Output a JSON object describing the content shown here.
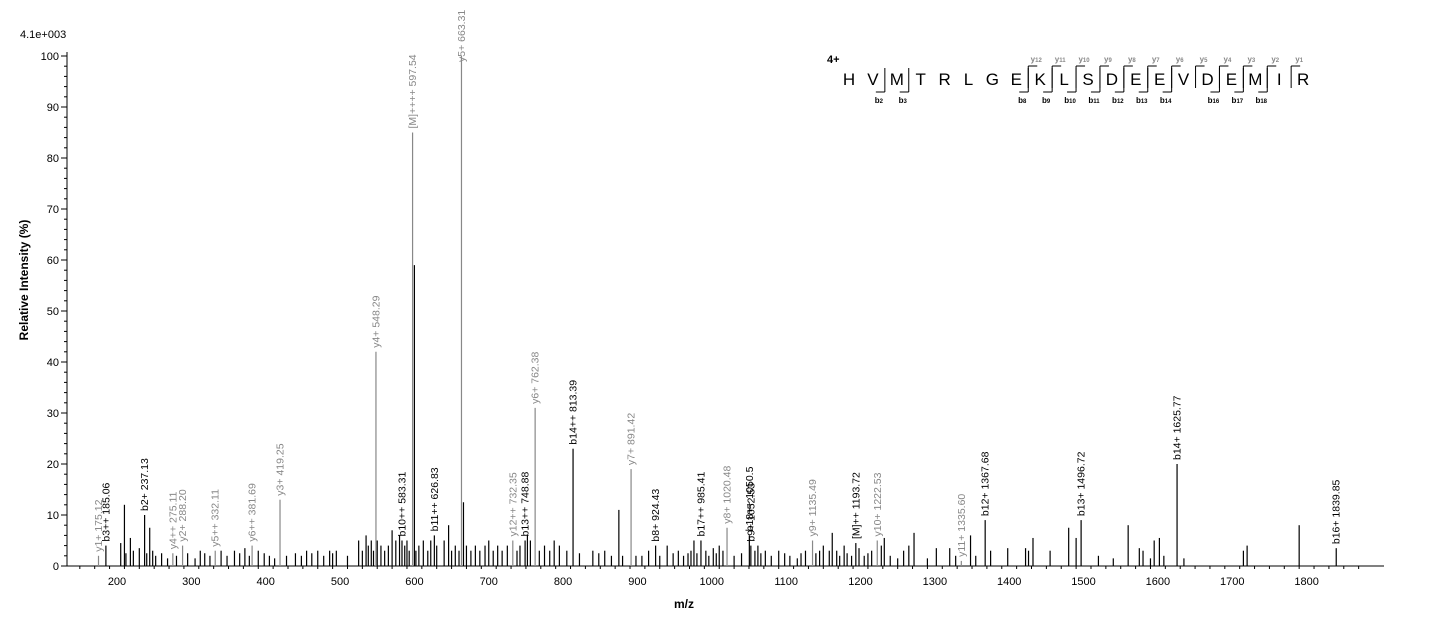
{
  "chart_data": {
    "type": "bar",
    "title": "",
    "xlabel": "m/z",
    "ylabel": "Relative   Intensity (%)",
    "scale_label": "4.1e+003",
    "xlim": [
      140,
      1880
    ],
    "ylim": [
      0,
      100
    ],
    "x_ticks": [
      200,
      300,
      400,
      500,
      600,
      700,
      800,
      900,
      1000,
      1100,
      1200,
      1300,
      1400,
      1500,
      1600,
      1700,
      1800
    ],
    "y_ticks": [
      0,
      10,
      20,
      30,
      40,
      50,
      60,
      70,
      80,
      90,
      100
    ],
    "grid": false,
    "colors": {
      "b_ion": "#000000",
      "y_ion": "#888888",
      "peak": "#000000"
    },
    "labeled_peaks": [
      {
        "mz": 175.12,
        "intensity": 2.0,
        "label": "y1+ 175.12",
        "series": "y"
      },
      {
        "mz": 185.06,
        "intensity": 4.0,
        "label": "b3++ 185.06",
        "series": "b"
      },
      {
        "mz": 237.13,
        "intensity": 10.0,
        "label": "b2+ 237.13",
        "series": "b"
      },
      {
        "mz": 275.11,
        "intensity": 2.5,
        "label": "y4++ 275.11",
        "series": "y"
      },
      {
        "mz": 288.2,
        "intensity": 4.0,
        "label": "y2+ 288.20",
        "series": "y"
      },
      {
        "mz": 332.11,
        "intensity": 3.0,
        "label": "y5++ 332.11",
        "series": "y"
      },
      {
        "mz": 381.69,
        "intensity": 4.0,
        "label": "y6++ 381.69",
        "series": "y"
      },
      {
        "mz": 419.25,
        "intensity": 13.0,
        "label": "y3+ 419.25",
        "series": "y"
      },
      {
        "mz": 548.29,
        "intensity": 42.0,
        "label": "y4+ 548.29",
        "series": "y"
      },
      {
        "mz": 583.31,
        "intensity": 5.0,
        "label": "b10++ 583.31",
        "series": "b"
      },
      {
        "mz": 597.54,
        "intensity": 85.0,
        "label": "[M]++++ 597.54",
        "series": "y"
      },
      {
        "mz": 626.83,
        "intensity": 6.0,
        "label": "b11++ 626.83",
        "series": "b"
      },
      {
        "mz": 663.31,
        "intensity": 100.0,
        "label": "y5+ 663.31",
        "series": "y"
      },
      {
        "mz": 732.35,
        "intensity": 5.0,
        "label": "y12++ 732.35",
        "series": "y"
      },
      {
        "mz": 748.88,
        "intensity": 5.0,
        "label": "b13++ 748.88",
        "series": "b"
      },
      {
        "mz": 762.38,
        "intensity": 31.0,
        "label": "y6+ 762.38",
        "series": "y"
      },
      {
        "mz": 813.39,
        "intensity": 23.0,
        "label": "b14++ 813.39",
        "series": "b"
      },
      {
        "mz": 891.42,
        "intensity": 19.0,
        "label": "y7+ 891.42",
        "series": "y"
      },
      {
        "mz": 924.43,
        "intensity": 4.0,
        "label": "b8+ 924.43",
        "series": "b"
      },
      {
        "mz": 985.41,
        "intensity": 5.0,
        "label": "b17++ 985.41",
        "series": "b"
      },
      {
        "mz": 1020.48,
        "intensity": 7.5,
        "label": "y8+ 1020.48",
        "series": "y"
      },
      {
        "mz": 1050.5,
        "intensity": 6.0,
        "label": "b18++ 1050.5",
        "series": "b"
      },
      {
        "mz": 1052.53,
        "intensity": 4.0,
        "label": "b9+ 1052.53",
        "series": "b"
      },
      {
        "mz": 1135.49,
        "intensity": 5.0,
        "label": "y9+ 1135.49",
        "series": "y"
      },
      {
        "mz": 1193.72,
        "intensity": 4.5,
        "label": "[M]++ 1193.72",
        "series": "b"
      },
      {
        "mz": 1222.53,
        "intensity": 5.0,
        "label": "y10+ 1222.53",
        "series": "y"
      },
      {
        "mz": 1335.6,
        "intensity": 1.0,
        "label": "y11+ 1335.60",
        "series": "y"
      },
      {
        "mz": 1367.68,
        "intensity": 9.0,
        "label": "b12+ 1367.68",
        "series": "b"
      },
      {
        "mz": 1496.72,
        "intensity": 9.0,
        "label": "b13+ 1496.72",
        "series": "b"
      },
      {
        "mz": 1625.77,
        "intensity": 20.0,
        "label": "b14+ 1625.77",
        "series": "b"
      },
      {
        "mz": 1839.85,
        "intensity": 3.5,
        "label": "b16+ 1839.85",
        "series": "b"
      }
    ],
    "background_peaks": [
      [
        205,
        4.5
      ],
      [
        210,
        12
      ],
      [
        212,
        2.5
      ],
      [
        218,
        5.5
      ],
      [
        222,
        3
      ],
      [
        230,
        3.5
      ],
      [
        240,
        2.5
      ],
      [
        244,
        7.5
      ],
      [
        248,
        3
      ],
      [
        252,
        2
      ],
      [
        260,
        2.5
      ],
      [
        268,
        1.5
      ],
      [
        280,
        2
      ],
      [
        295,
        2.5
      ],
      [
        305,
        1.5
      ],
      [
        312,
        3
      ],
      [
        318,
        2.5
      ],
      [
        325,
        2
      ],
      [
        340,
        3
      ],
      [
        348,
        2
      ],
      [
        358,
        3
      ],
      [
        365,
        2.5
      ],
      [
        372,
        3.5
      ],
      [
        378,
        2
      ],
      [
        390,
        3
      ],
      [
        398,
        2.5
      ],
      [
        405,
        2
      ],
      [
        412,
        1.5
      ],
      [
        428,
        2
      ],
      [
        440,
        2.5
      ],
      [
        448,
        2
      ],
      [
        455,
        3
      ],
      [
        462,
        2.5
      ],
      [
        470,
        3
      ],
      [
        478,
        2
      ],
      [
        486,
        3
      ],
      [
        490,
        2.5
      ],
      [
        495,
        3
      ],
      [
        510,
        2
      ],
      [
        525,
        5
      ],
      [
        530,
        3
      ],
      [
        535,
        6
      ],
      [
        538,
        4
      ],
      [
        542,
        5
      ],
      [
        545,
        3
      ],
      [
        550,
        5
      ],
      [
        555,
        4
      ],
      [
        560,
        3
      ],
      [
        565,
        4
      ],
      [
        570,
        7
      ],
      [
        575,
        5
      ],
      [
        580,
        6
      ],
      [
        587,
        4
      ],
      [
        590,
        5
      ],
      [
        593,
        3
      ],
      [
        600,
        59
      ],
      [
        602,
        3
      ],
      [
        606,
        4
      ],
      [
        612,
        5
      ],
      [
        618,
        3
      ],
      [
        622,
        5
      ],
      [
        630,
        4
      ],
      [
        640,
        5
      ],
      [
        646,
        8
      ],
      [
        650,
        3
      ],
      [
        655,
        4
      ],
      [
        660,
        3
      ],
      [
        666,
        12.5
      ],
      [
        670,
        4
      ],
      [
        676,
        3
      ],
      [
        682,
        4
      ],
      [
        688,
        3
      ],
      [
        695,
        4
      ],
      [
        700,
        5
      ],
      [
        706,
        3
      ],
      [
        712,
        4
      ],
      [
        718,
        3
      ],
      [
        725,
        4
      ],
      [
        738,
        3
      ],
      [
        742,
        4
      ],
      [
        752,
        6
      ],
      [
        756,
        5
      ],
      [
        768,
        3
      ],
      [
        775,
        4
      ],
      [
        782,
        3
      ],
      [
        788,
        5
      ],
      [
        795,
        4
      ],
      [
        805,
        3
      ],
      [
        822,
        2.5
      ],
      [
        840,
        3
      ],
      [
        848,
        2.5
      ],
      [
        856,
        3
      ],
      [
        865,
        2
      ],
      [
        875,
        11
      ],
      [
        880,
        2
      ],
      [
        898,
        2
      ],
      [
        906,
        2
      ],
      [
        915,
        3
      ],
      [
        930,
        2
      ],
      [
        940,
        4
      ],
      [
        948,
        2.5
      ],
      [
        955,
        3
      ],
      [
        962,
        2
      ],
      [
        968,
        2.5
      ],
      [
        972,
        3
      ],
      [
        976,
        5
      ],
      [
        980,
        2.5
      ],
      [
        992,
        3
      ],
      [
        996,
        2
      ],
      [
        1002,
        3.5
      ],
      [
        1006,
        2.5
      ],
      [
        1010,
        4
      ],
      [
        1015,
        3
      ],
      [
        1030,
        2
      ],
      [
        1040,
        2.5
      ],
      [
        1058,
        3
      ],
      [
        1062,
        4
      ],
      [
        1066,
        2.5
      ],
      [
        1072,
        3
      ],
      [
        1080,
        2
      ],
      [
        1090,
        3
      ],
      [
        1098,
        2.5
      ],
      [
        1105,
        2
      ],
      [
        1115,
        1.5
      ],
      [
        1120,
        2.5
      ],
      [
        1126,
        3
      ],
      [
        1140,
        2.5
      ],
      [
        1145,
        3
      ],
      [
        1150,
        4
      ],
      [
        1158,
        3
      ],
      [
        1162,
        6.5
      ],
      [
        1168,
        3
      ],
      [
        1172,
        2
      ],
      [
        1178,
        4
      ],
      [
        1182,
        2.5
      ],
      [
        1188,
        2
      ],
      [
        1198,
        3.5
      ],
      [
        1205,
        2
      ],
      [
        1210,
        2.5
      ],
      [
        1215,
        3
      ],
      [
        1228,
        4
      ],
      [
        1232,
        5.5
      ],
      [
        1240,
        2
      ],
      [
        1250,
        1.5
      ],
      [
        1258,
        3
      ],
      [
        1265,
        4
      ],
      [
        1272,
        6.5
      ],
      [
        1290,
        1.5
      ],
      [
        1302,
        3.5
      ],
      [
        1320,
        3.5
      ],
      [
        1328,
        2
      ],
      [
        1348,
        6
      ],
      [
        1355,
        2
      ],
      [
        1375,
        3
      ],
      [
        1398,
        3.5
      ],
      [
        1422,
        3.5
      ],
      [
        1426,
        3
      ],
      [
        1432,
        5.5
      ],
      [
        1455,
        3
      ],
      [
        1480,
        7.5
      ],
      [
        1490,
        5.5
      ],
      [
        1520,
        2
      ],
      [
        1540,
        1.5
      ],
      [
        1560,
        8
      ],
      [
        1575,
        3.5
      ],
      [
        1580,
        3
      ],
      [
        1590,
        1.5
      ],
      [
        1595,
        5
      ],
      [
        1602,
        5.5
      ],
      [
        1608,
        2
      ],
      [
        1635,
        1.5
      ],
      [
        1715,
        3
      ],
      [
        1720,
        4
      ],
      [
        1790,
        8
      ]
    ],
    "sequence": {
      "charge": "4+",
      "residues": [
        "H",
        "V",
        "M",
        "T",
        "R",
        "L",
        "G",
        "E",
        "K",
        "L",
        "S",
        "D",
        "E",
        "E",
        "V",
        "D",
        "E",
        "M",
        "I",
        "R"
      ],
      "b_ions": [
        {
          "after": 2,
          "num": "2"
        },
        {
          "after": 3,
          "num": "3"
        },
        {
          "after": 8,
          "num": "8"
        },
        {
          "after": 9,
          "num": "9"
        },
        {
          "after": 10,
          "num": "10"
        },
        {
          "after": 11,
          "num": "11"
        },
        {
          "after": 12,
          "num": "12"
        },
        {
          "after": 13,
          "num": "13"
        },
        {
          "after": 14,
          "num": "14"
        },
        {
          "after": 16,
          "num": "16"
        },
        {
          "after": 17,
          "num": "17"
        },
        {
          "after": 18,
          "num": "18"
        }
      ],
      "y_ions": [
        {
          "after": 8,
          "num": "12"
        },
        {
          "after": 9,
          "num": "11"
        },
        {
          "after": 10,
          "num": "10"
        },
        {
          "after": 11,
          "num": "9"
        },
        {
          "after": 12,
          "num": "8"
        },
        {
          "after": 13,
          "num": "7"
        },
        {
          "after": 14,
          "num": "6"
        },
        {
          "after": 15,
          "num": "5"
        },
        {
          "after": 16,
          "num": "4"
        },
        {
          "after": 17,
          "num": "3"
        },
        {
          "after": 18,
          "num": "2"
        },
        {
          "after": 19,
          "num": "1"
        }
      ]
    }
  }
}
